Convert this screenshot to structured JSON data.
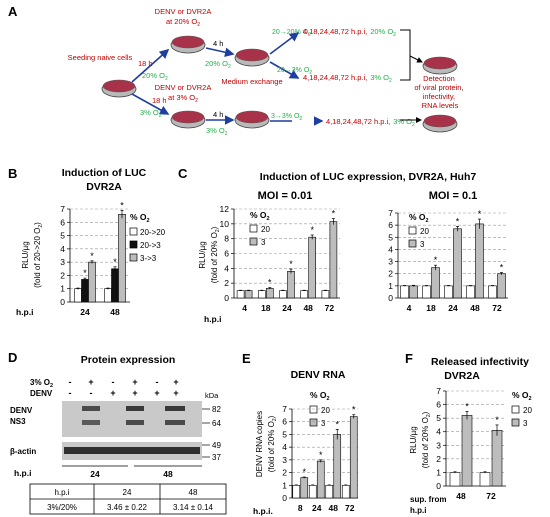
{
  "colors": {
    "red": "#c00000",
    "green": "#22b04a",
    "blue": "#1f3fa0",
    "black": "#000000",
    "bar_white": "#ffffff",
    "bar_black": "#111111",
    "bar_gray": "#bdbdbd"
  },
  "panelA": {
    "letter": "A",
    "seeding": "Seeding naive cells",
    "h18": "18 h",
    "o2_20": "20% O",
    "o2_3": "3% O",
    "o2_sub": "2",
    "inf20_l1": "DENV or DVR2A",
    "inf20_l2": "at 20% O",
    "inf3_l1": "DENV or DVR2A",
    "inf3_l2": "at 3% O",
    "h4": "4 h",
    "med_exch": "Medium exchange",
    "t20_20": "20→20% O",
    "t20_3": "20→3% O",
    "t3_3": "3→3% O",
    "hpi_times": "4,18,24,48,72 h.p.i,",
    "o2_20_end": "20% O",
    "o2_3_end": "3% O",
    "detection_l1": "Detection",
    "detection_l2": "of viral protein,",
    "detection_l3": "infectivity,",
    "detection_l4": "RNA levels"
  },
  "panelB": {
    "letter": "B",
    "title1": "Induction of LUC",
    "title2": "DVR2A",
    "ylabel1": "RLU/µg",
    "ylabel2": "(fold of 20->20 O",
    "xlabel": "h.p.i",
    "legend_title": "% O",
    "legend": [
      "20->20",
      "20->3",
      "3->3"
    ]
  },
  "panelC": {
    "letter": "C",
    "title": "Induction of LUC expression, DVR2A, Huh7",
    "moi1": "MOI = 0.01",
    "moi2": "MOI = 0.1",
    "ylabel1": "RLU/µg",
    "ylabel2": "(fold of 20% O",
    "xlabel": "h.p.i",
    "legend_title": "% O",
    "legend": [
      "20",
      "3"
    ]
  },
  "panelD": {
    "letter": "D",
    "title": "Protein expression",
    "row1_label": "3% O",
    "row2_label": "DENV",
    "row1_signs": [
      "-",
      "+",
      "-",
      "+",
      "-",
      "+"
    ],
    "row2_signs": [
      "-",
      "-",
      "+",
      "+",
      "+",
      "+"
    ],
    "kda": "kDa",
    "mw": [
      "82",
      "64",
      "49",
      "37"
    ],
    "blot1_label1": "DENV",
    "blot1_label2": "NS3",
    "blot2_label": "β-actin",
    "hpi_label": "h.p.i",
    "hpi_vals": [
      "24",
      "48"
    ],
    "table_header": [
      "h.p.i",
      "24",
      "48"
    ],
    "table_row": [
      "3%/20%",
      "3.46 ± 0.22",
      "3.14 ± 0.14"
    ]
  },
  "panelE": {
    "letter": "E",
    "title": "DENV RNA",
    "ylabel1": "DENV RNA copies",
    "ylabel2": "(fold of 20% O",
    "xlabel": "h.p.i.",
    "legend_title": "% O",
    "legend": [
      "20",
      "3"
    ]
  },
  "panelF": {
    "letter": "F",
    "title1": "Released infectivity",
    "title2": "DVR2A",
    "ylabel1": "RLU/µg",
    "ylabel2": "(fold  of 20% O",
    "xlabel1": "sup. from",
    "xlabel2": "h.p.i",
    "legend_title": "% O",
    "legend": [
      "20",
      "3"
    ]
  },
  "chart_data": [
    {
      "id": "B",
      "type": "bar",
      "title": "Induction of LUC DVR2A",
      "ylabel": "RLU/µg (fold of 20->20 O2)",
      "xlabel": "h.p.i",
      "categories": [
        "24",
        "48"
      ],
      "ylim": [
        0,
        7
      ],
      "yticks": [
        0,
        1,
        2,
        3,
        4,
        5,
        6,
        7
      ],
      "series": [
        {
          "name": "20->20",
          "values": [
            1.0,
            1.0
          ],
          "errors": [
            0.05,
            0.05
          ],
          "sig": [
            false,
            false
          ]
        },
        {
          "name": "20->3",
          "values": [
            1.7,
            2.5
          ],
          "errors": [
            0.1,
            0.15
          ],
          "sig": [
            true,
            true
          ]
        },
        {
          "name": "3->3",
          "values": [
            3.0,
            6.6
          ],
          "errors": [
            0.1,
            0.3
          ],
          "sig": [
            true,
            true
          ]
        }
      ]
    },
    {
      "id": "C1",
      "type": "bar",
      "title": "MOI = 0.01",
      "ylabel": "RLU/µg (fold of 20% O2)",
      "xlabel": "h.p.i",
      "categories": [
        "4",
        "18",
        "24",
        "48",
        "72"
      ],
      "ylim": [
        0,
        12
      ],
      "yticks": [
        0,
        2,
        4,
        6,
        8,
        10,
        12
      ],
      "series": [
        {
          "name": "20",
          "values": [
            1.0,
            1.0,
            1.0,
            1.0,
            1.0
          ],
          "errors": [
            0.05,
            0.05,
            0.05,
            0.05,
            0.05
          ],
          "sig": [
            false,
            false,
            false,
            false,
            false
          ]
        },
        {
          "name": "3",
          "values": [
            1.0,
            1.3,
            3.6,
            8.2,
            10.3
          ],
          "errors": [
            0.05,
            0.1,
            0.3,
            0.3,
            0.4
          ],
          "sig": [
            false,
            true,
            true,
            true,
            true
          ]
        }
      ]
    },
    {
      "id": "C2",
      "type": "bar",
      "title": "MOI = 0.1",
      "ylabel": "",
      "xlabel": "",
      "categories": [
        "4",
        "18",
        "24",
        "48",
        "72"
      ],
      "ylim": [
        0,
        7
      ],
      "yticks": [
        0,
        1,
        2,
        3,
        4,
        5,
        6,
        7
      ],
      "series": [
        {
          "name": "20",
          "values": [
            1.0,
            1.0,
            1.0,
            1.0,
            1.0
          ],
          "errors": [
            0.03,
            0.03,
            0.03,
            0.03,
            0.03
          ],
          "sig": [
            false,
            false,
            false,
            false,
            false
          ]
        },
        {
          "name": "3",
          "values": [
            1.0,
            2.5,
            5.7,
            6.1,
            2.0
          ],
          "errors": [
            0.05,
            0.2,
            0.2,
            0.4,
            0.1
          ],
          "sig": [
            false,
            true,
            true,
            true,
            true
          ]
        }
      ]
    },
    {
      "id": "E",
      "type": "bar",
      "title": "DENV RNA",
      "ylabel": "DENV RNA copies (fold of 20% O2)",
      "xlabel": "h.p.i.",
      "categories": [
        "8",
        "24",
        "48",
        "72"
      ],
      "ylim": [
        0,
        7
      ],
      "yticks": [
        0,
        1,
        2,
        3,
        4,
        5,
        6,
        7
      ],
      "series": [
        {
          "name": "20",
          "values": [
            1.0,
            1.0,
            1.0,
            1.0
          ],
          "errors": [
            0.03,
            0.03,
            0.03,
            0.03
          ],
          "sig": [
            false,
            false,
            false,
            false
          ]
        },
        {
          "name": "3",
          "values": [
            1.6,
            2.9,
            5.0,
            6.4
          ],
          "errors": [
            0.05,
            0.1,
            0.4,
            0.15
          ],
          "sig": [
            true,
            true,
            true,
            true
          ]
        }
      ]
    },
    {
      "id": "F",
      "type": "bar",
      "title": "Released infectivity DVR2A",
      "ylabel": "RLU/µg (fold of 20% O2)",
      "xlabel": "sup. from h.p.i",
      "categories": [
        "48",
        "72"
      ],
      "ylim": [
        0,
        7
      ],
      "yticks": [
        0,
        1,
        2,
        3,
        4,
        5,
        6,
        7
      ],
      "series": [
        {
          "name": "20",
          "values": [
            1.0,
            1.0
          ],
          "errors": [
            0.05,
            0.05
          ],
          "sig": [
            false,
            false
          ]
        },
        {
          "name": "3",
          "values": [
            5.2,
            4.1
          ],
          "errors": [
            0.3,
            0.4
          ],
          "sig": [
            true,
            true
          ]
        }
      ]
    }
  ]
}
